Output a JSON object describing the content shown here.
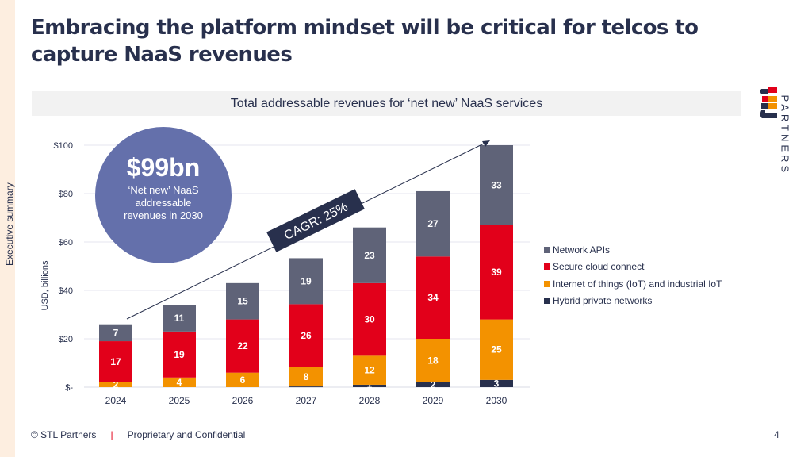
{
  "slide": {
    "title": "Embracing the platform mindset will be critical for telcos to capture NaaS revenues",
    "section_label": "Executive summary",
    "subtitle": "Total addressable revenues for ‘net new’ NaaS services",
    "logo_text": "PARTNERS",
    "footer_copyright": "© STL Partners",
    "footer_separator": "|",
    "footer_confidential": "Proprietary and Confidential",
    "page_number": "4"
  },
  "callout": {
    "value": "$99bn",
    "description": "‘Net new’ NaaS addressable revenues in 2030"
  },
  "cagr_label": "CAGR: 25%",
  "colors": {
    "network_apis": "#5f6378",
    "secure_cloud": "#e2001a",
    "iot": "#f39200",
    "hybrid_private": "#28304d",
    "accent_dark": "#28304d",
    "callout_circle": "#6470ab"
  },
  "chart_data": {
    "type": "bar",
    "stacked": true,
    "title": "Total addressable revenues for ‘net new’ NaaS services",
    "xlabel": "",
    "ylabel": "USD, billions",
    "categories": [
      "2024",
      "2025",
      "2026",
      "2027",
      "2028",
      "2029",
      "2030"
    ],
    "ylim": [
      0,
      100
    ],
    "yticks": [
      0,
      20,
      40,
      60,
      80,
      100
    ],
    "ytick_labels": [
      "$-",
      "$20",
      "$40",
      "$60",
      "$80",
      "$100"
    ],
    "grid": true,
    "legend_position": "right",
    "series": [
      {
        "name": "Hybrid private networks",
        "color": "#28304d",
        "values": [
          0,
          0,
          0,
          0.3,
          1,
          2,
          3
        ],
        "labels": [
          "",
          "",
          "",
          "",
          "1",
          "2",
          "3"
        ]
      },
      {
        "name": "Internet of things (IoT) and industrial IoT",
        "color": "#f39200",
        "values": [
          2,
          4,
          6,
          8,
          12,
          18,
          25
        ],
        "labels": [
          "2",
          "4",
          "6",
          "8",
          "12",
          "18",
          "25"
        ]
      },
      {
        "name": "Secure cloud connect",
        "color": "#e2001a",
        "values": [
          17,
          19,
          22,
          26,
          30,
          34,
          39
        ],
        "labels": [
          "17",
          "19",
          "22",
          "26",
          "30",
          "34",
          "39"
        ]
      },
      {
        "name": "Network APIs",
        "color": "#5f6378",
        "values": [
          7,
          11,
          15,
          19,
          23,
          27,
          33
        ],
        "labels": [
          "7",
          "11",
          "15",
          "19",
          "23",
          "27",
          "33"
        ]
      }
    ],
    "legend_order": [
      "Network APIs",
      "Secure cloud connect",
      "Internet of things (IoT) and industrial IoT",
      "Hybrid private networks"
    ],
    "annotations": [
      "$99bn ‘Net new’ NaaS addressable revenues in 2030",
      "CAGR: 25%"
    ]
  }
}
